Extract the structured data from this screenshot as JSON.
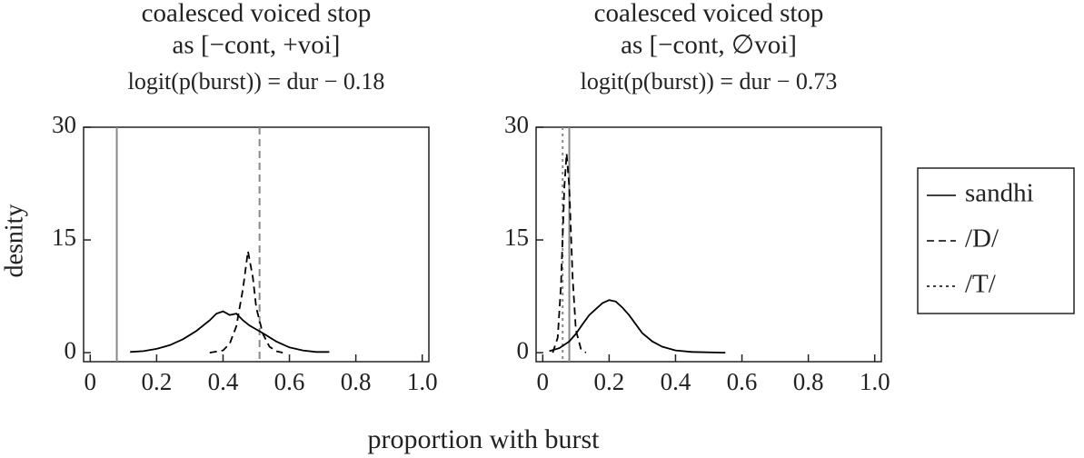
{
  "y_label": "desnity",
  "x_label": "proportion with burst",
  "legend": [
    {
      "name": "sandhi",
      "dash": "solid"
    },
    {
      "name": "/D/",
      "dash": "dashed"
    },
    {
      "name": "/T/",
      "dash": "dotted"
    }
  ],
  "chart_data": [
    {
      "type": "line",
      "title": [
        "coalesced voiced stop",
        "as [−cont, +voi]",
        "logit(p(burst)) = dur − 0.18"
      ],
      "xlim": [
        -0.02,
        1.02
      ],
      "ylim": [
        -1.2,
        30
      ],
      "xticks": [
        0,
        0.2,
        0.4,
        0.6,
        0.8,
        {
          "value": 1,
          "label": "1.0"
        }
      ],
      "yticks": [
        0,
        15,
        30
      ],
      "series": [
        {
          "color": "#000000",
          "dash": "solid",
          "x": [
            0.12,
            0.16,
            0.2,
            0.24,
            0.28,
            0.32,
            0.36,
            0.38,
            0.4,
            0.42,
            0.44,
            0.46,
            0.48,
            0.52,
            0.56,
            0.6,
            0.64,
            0.68,
            0.72
          ],
          "values": [
            0.1,
            0.2,
            0.5,
            1.0,
            1.8,
            2.9,
            4.3,
            5.2,
            5.5,
            5.0,
            5.2,
            4.3,
            3.6,
            2.6,
            1.5,
            0.7,
            0.3,
            0.1,
            0.1
          ]
        },
        {
          "color": "#000000",
          "dash": "dashed",
          "x": [
            0.36,
            0.4,
            0.42,
            0.44,
            0.46,
            0.475,
            0.49,
            0.5,
            0.52,
            0.54,
            0.56,
            0.58
          ],
          "values": [
            0,
            0.3,
            1.2,
            3.5,
            8.5,
            13.5,
            10,
            6,
            2.5,
            0.8,
            0.2,
            0
          ]
        }
      ],
      "vlines": [
        {
          "x": 0.08,
          "dash": "solid",
          "color": "#888888"
        },
        {
          "x": 0.51,
          "dash": "dashed",
          "color": "#888888"
        }
      ]
    },
    {
      "type": "line",
      "title": [
        "coalesced voiced stop",
        "as [−cont, ∅voi]",
        "logit(p(burst)) = dur − 0.73"
      ],
      "xlim": [
        -0.02,
        1.02
      ],
      "ylim": [
        -1.2,
        30
      ],
      "xticks": [
        0,
        0.2,
        0.4,
        0.6,
        0.8,
        {
          "value": 1,
          "label": "1.0"
        }
      ],
      "yticks": [
        0,
        15,
        30
      ],
      "series": [
        {
          "color": "#000000",
          "dash": "solid",
          "x": [
            0.02,
            0.05,
            0.08,
            0.1,
            0.12,
            0.14,
            0.16,
            0.18,
            0.2,
            0.22,
            0.24,
            0.26,
            0.28,
            0.3,
            0.33,
            0.36,
            0.4,
            0.45,
            0.55
          ],
          "values": [
            0.2,
            0.6,
            1.5,
            2.5,
            3.8,
            5.0,
            5.8,
            6.6,
            7.0,
            6.8,
            6.0,
            5.0,
            3.8,
            2.6,
            1.5,
            0.8,
            0.3,
            0.1,
            0
          ]
        },
        {
          "color": "#000000",
          "dash": "dashed",
          "x": [
            0.03,
            0.045,
            0.055,
            0.065,
            0.072,
            0.08,
            0.09,
            0.1,
            0.115,
            0.13
          ],
          "values": [
            0,
            2,
            9,
            22,
            26.5,
            22,
            10,
            3,
            0.5,
            0
          ]
        }
      ],
      "vlines": [
        {
          "x": 0.06,
          "dash": "dotted",
          "color": "#888888"
        },
        {
          "x": 0.08,
          "dash": "solid",
          "color": "#888888"
        }
      ]
    }
  ]
}
